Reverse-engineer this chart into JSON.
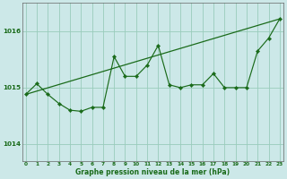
{
  "title": "Graphe pression niveau de la mer (hPa)",
  "background_color": "#cce8e8",
  "grid_color": "#99ccbb",
  "line_color": "#1a6b1a",
  "xlim": [
    -0.3,
    23.3
  ],
  "ylim": [
    1013.7,
    1016.5
  ],
  "yticks": [
    1014,
    1015,
    1016
  ],
  "xticks": [
    0,
    1,
    2,
    3,
    4,
    5,
    6,
    7,
    8,
    9,
    10,
    11,
    12,
    13,
    14,
    15,
    16,
    17,
    18,
    19,
    20,
    21,
    22,
    23
  ],
  "jagged_x": [
    0,
    1,
    2,
    3,
    4,
    5,
    6,
    7,
    8,
    9,
    10,
    11,
    12,
    13,
    14,
    15,
    16,
    17,
    18,
    19,
    20,
    21,
    22,
    23
  ],
  "jagged_y": [
    1014.88,
    1015.07,
    1014.88,
    1014.72,
    1014.6,
    1014.58,
    1014.65,
    1014.65,
    1015.55,
    1015.2,
    1015.2,
    1015.4,
    1015.75,
    1015.05,
    1015.0,
    1015.05,
    1015.05,
    1015.25,
    1015.0,
    1015.0,
    1015.0,
    1015.65,
    1015.88,
    1016.22
  ],
  "trend_x": [
    0,
    23
  ],
  "trend_y": [
    1014.88,
    1016.22
  ],
  "xlabel_fontsize": 5.5,
  "ylabel_fontsize": 5.5,
  "xtick_fontsize": 4.2,
  "ytick_fontsize": 5.2
}
